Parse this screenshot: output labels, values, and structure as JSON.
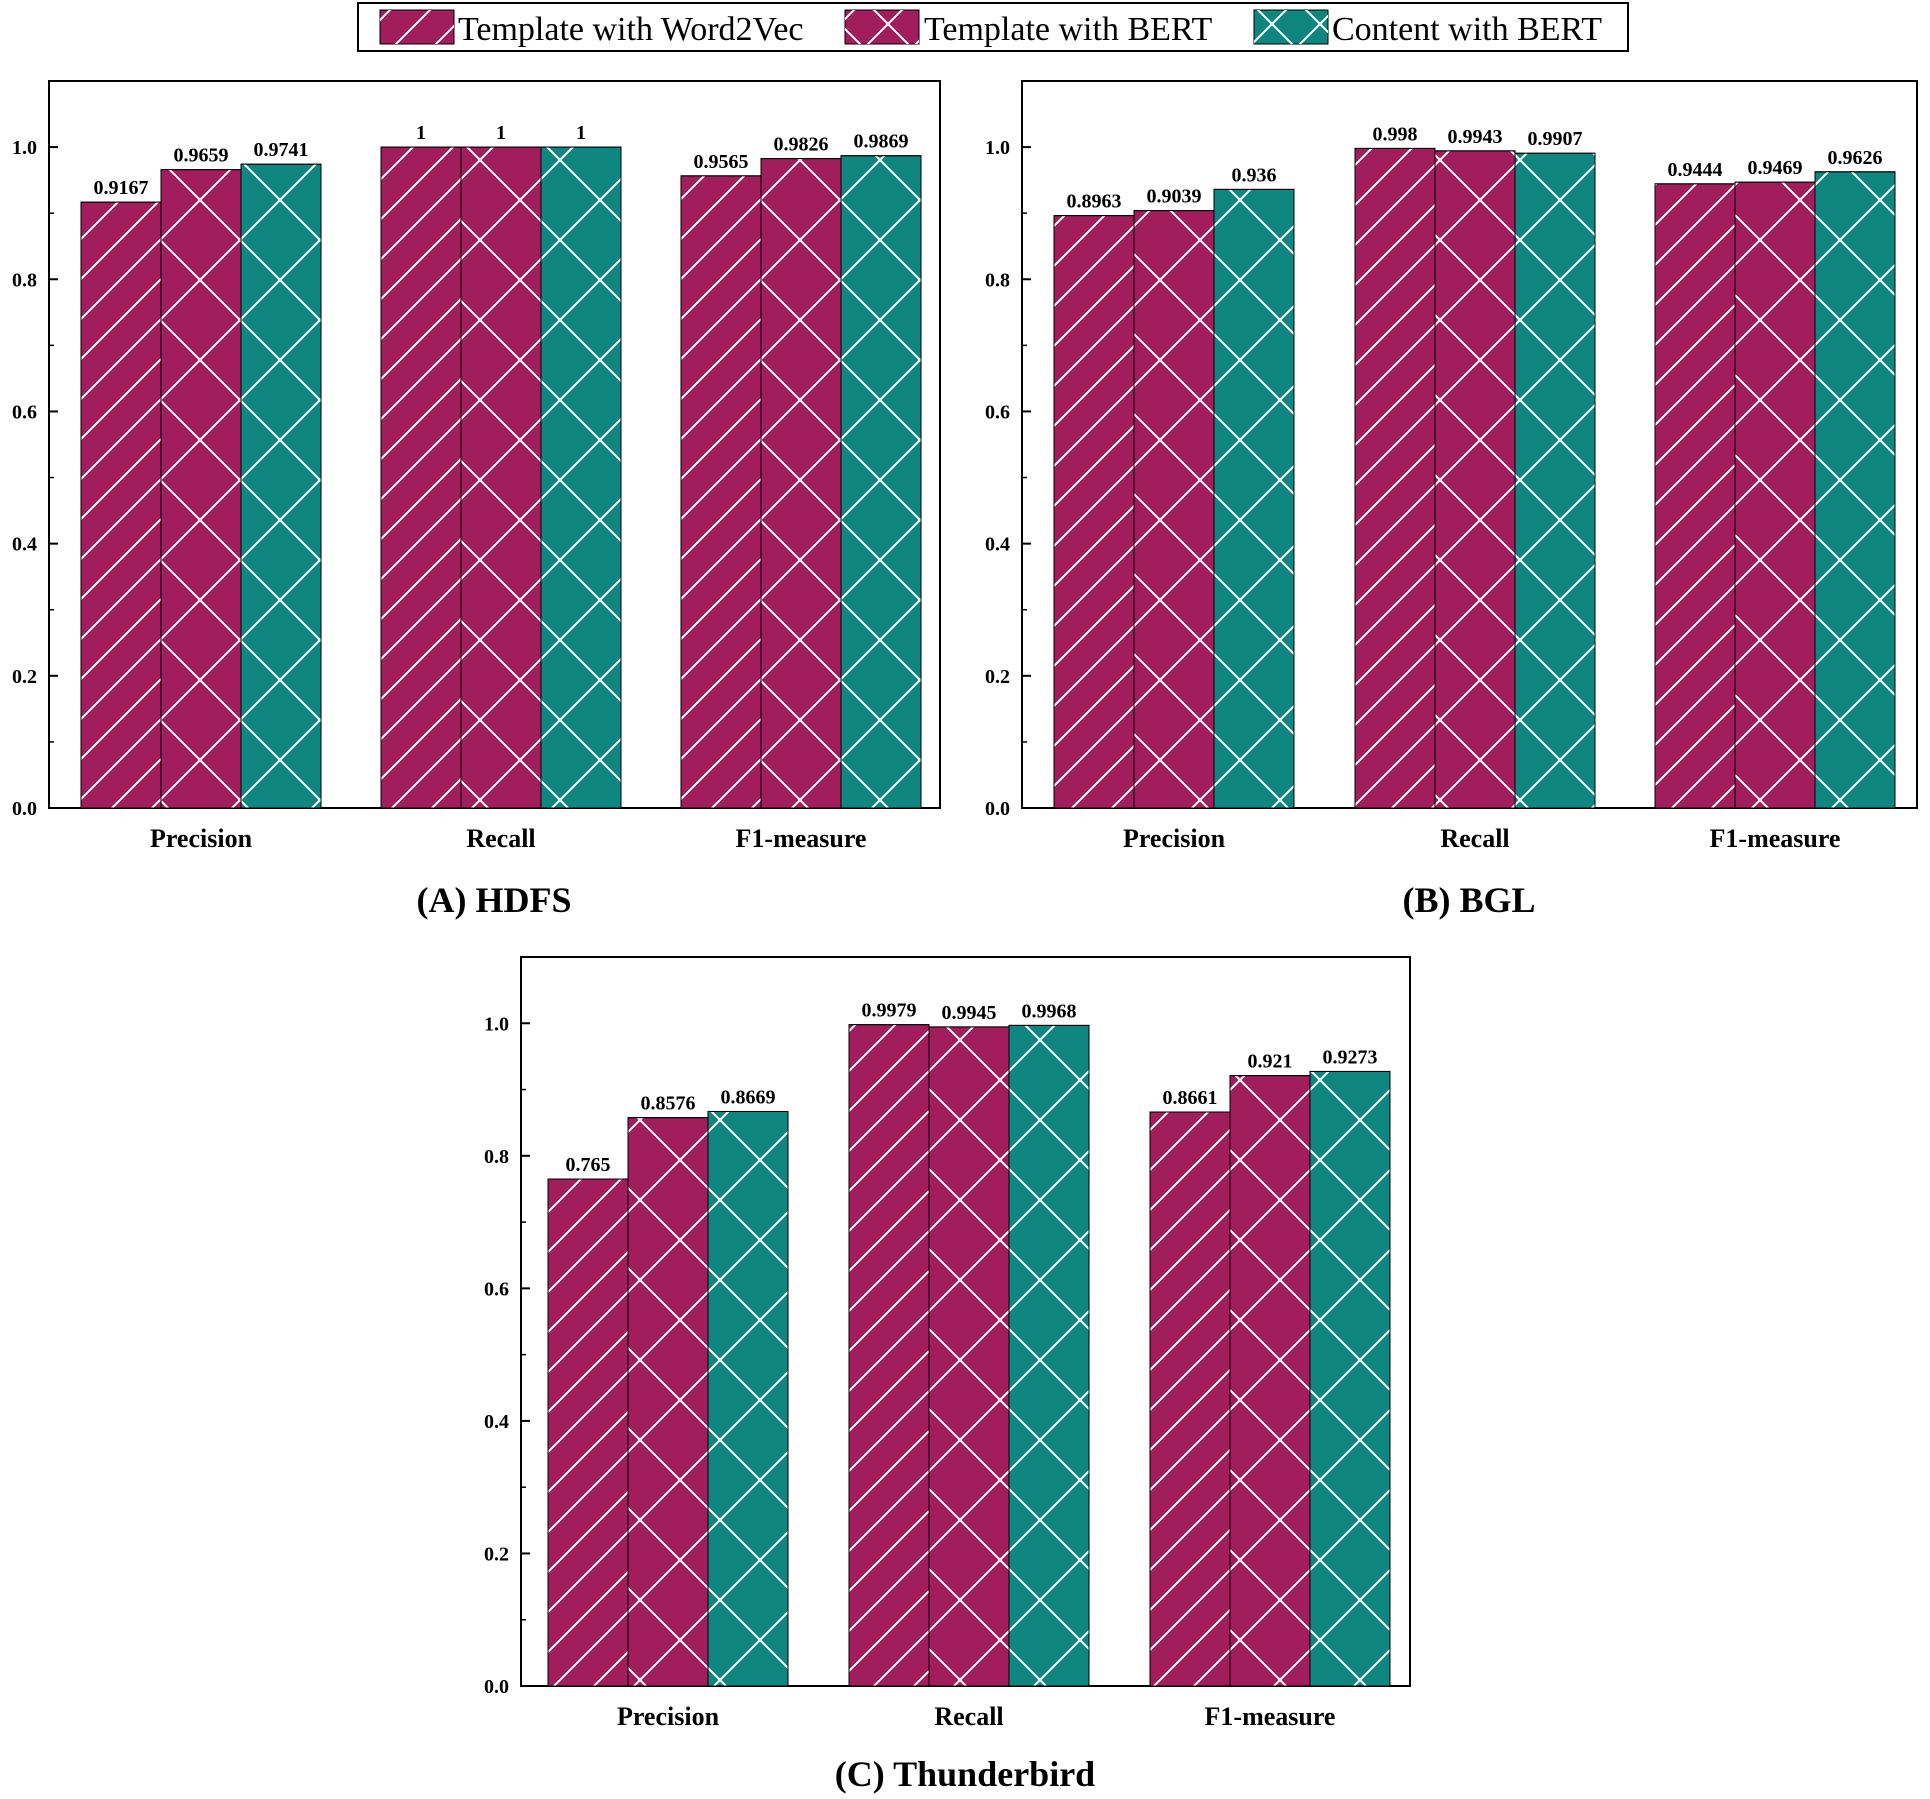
{
  "legend": {
    "entries": [
      {
        "label": "Template with Word2Vec",
        "color": "#a21d5c",
        "pattern": "diagonal-hatch"
      },
      {
        "label": "Template with BERT",
        "color": "#a21d5c",
        "pattern": "cross-hatch"
      },
      {
        "label": "Content with BERT",
        "color": "#0f8680",
        "pattern": "cross-hatch"
      }
    ]
  },
  "chart_data": [
    {
      "type": "bar",
      "title": "(A) HDFS",
      "categories": [
        "Precision",
        "Recall",
        "F1-measure"
      ],
      "series": [
        {
          "name": "Template with Word2Vec",
          "values": [
            0.9167,
            1,
            0.9565
          ]
        },
        {
          "name": "Template with BERT",
          "values": [
            0.9659,
            1,
            0.9826
          ]
        },
        {
          "name": "Content with BERT",
          "values": [
            0.9741,
            1,
            0.9869
          ]
        }
      ],
      "data_labels": [
        [
          "0.9167",
          "0.9659",
          "0.9741"
        ],
        [
          "1",
          "1",
          "1"
        ],
        [
          "0.9565",
          "0.9826",
          "0.9869"
        ]
      ],
      "ylim": [
        0,
        1.1
      ],
      "yticks": [
        "0.0",
        "0.2",
        "0.4",
        "0.6",
        "0.8",
        "1.0"
      ],
      "grid": false
    },
    {
      "type": "bar",
      "title": "(B) BGL",
      "categories": [
        "Precision",
        "Recall",
        "F1-measure"
      ],
      "series": [
        {
          "name": "Template with Word2Vec",
          "values": [
            0.8963,
            0.998,
            0.9444
          ]
        },
        {
          "name": "Template with BERT",
          "values": [
            0.9039,
            0.9943,
            0.9469
          ]
        },
        {
          "name": "Content with BERT",
          "values": [
            0.936,
            0.9907,
            0.9626
          ]
        }
      ],
      "data_labels": [
        [
          "0.8963",
          "0.9039",
          "0.936"
        ],
        [
          "0.998",
          "0.9943",
          "0.9907"
        ],
        [
          "0.9444",
          "0.9469",
          "0.9626"
        ]
      ],
      "ylim": [
        0,
        1.1
      ],
      "yticks": [
        "0.0",
        "0.2",
        "0.4",
        "0.6",
        "0.8",
        "1.0"
      ],
      "grid": false
    },
    {
      "type": "bar",
      "title": "(C) Thunderbird",
      "categories": [
        "Precision",
        "Recall",
        "F1-measure"
      ],
      "series": [
        {
          "name": "Template with Word2Vec",
          "values": [
            0.765,
            0.9979,
            0.8661
          ]
        },
        {
          "name": "Template with BERT",
          "values": [
            0.8576,
            0.9945,
            0.921
          ]
        },
        {
          "name": "Content with BERT",
          "values": [
            0.8669,
            0.9968,
            0.9273
          ]
        }
      ],
      "data_labels": [
        [
          "0.765",
          "0.8576",
          "0.8669"
        ],
        [
          "0.9979",
          "0.9945",
          "0.9968"
        ],
        [
          "0.8661",
          "0.921",
          "0.9273"
        ]
      ],
      "ylim": [
        0,
        1.1
      ],
      "yticks": [
        "0.0",
        "0.2",
        "0.4",
        "0.6",
        "0.8",
        "1.0"
      ],
      "grid": false
    }
  ]
}
